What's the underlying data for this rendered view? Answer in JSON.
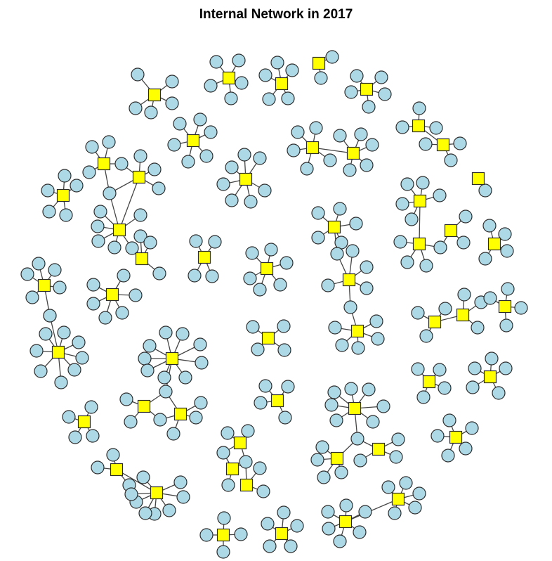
{
  "title": "Internal Network in 2017",
  "colors": {
    "hub_fill": "#ffff00",
    "leaf_fill": "#add8e6",
    "outline": "#2b2b2b",
    "edge": "#444444"
  },
  "legend": {
    "hub_shape": "square",
    "leaf_shape": "circle"
  }
}
